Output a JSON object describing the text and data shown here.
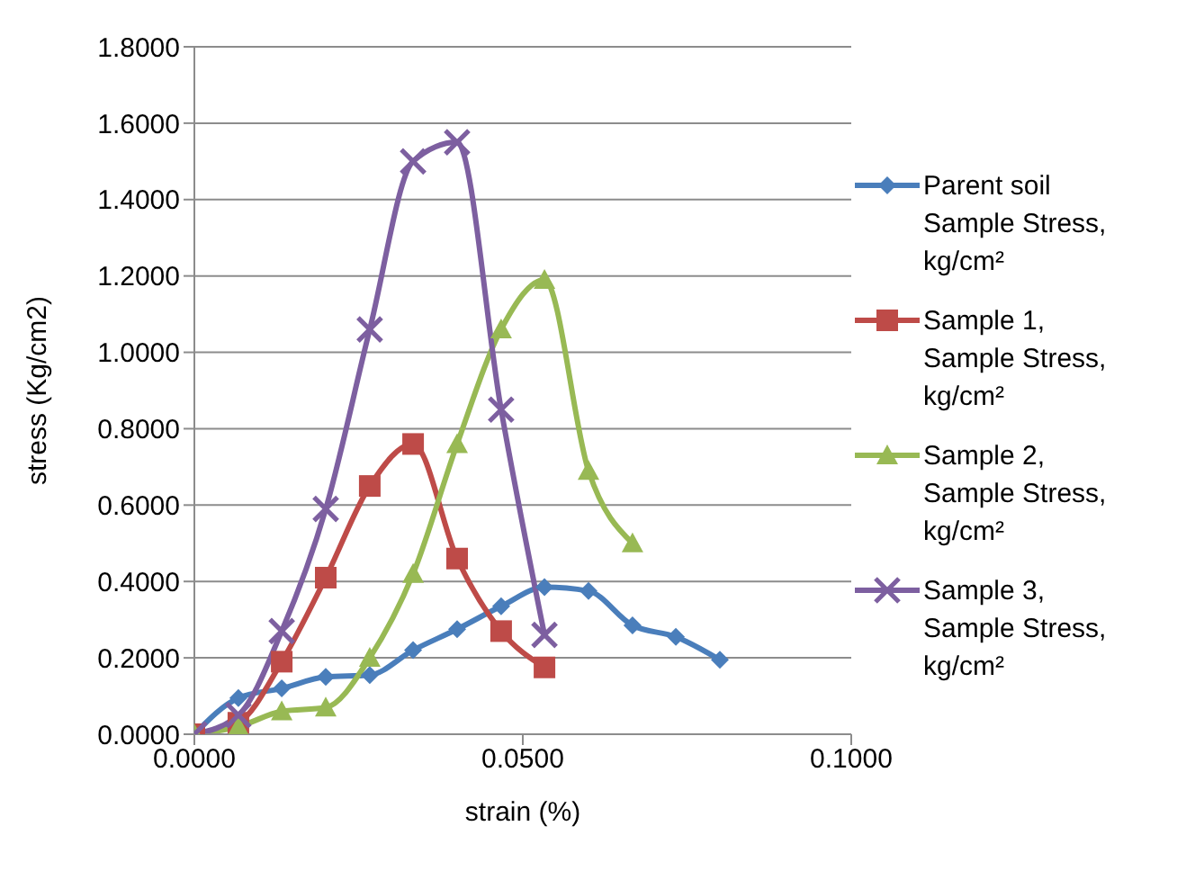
{
  "chart_data": {
    "type": "line",
    "xlabel": "strain (%)",
    "ylabel": "stress (Kg/cm2)",
    "xlim": [
      0,
      0.1
    ],
    "xticks": [
      {
        "value": 0,
        "label": "0.0000"
      },
      {
        "value": 0.05,
        "label": "0.0500"
      },
      {
        "value": 0.1,
        "label": "0.1000"
      }
    ],
    "ylim": [
      0,
      1.8
    ],
    "yticks": [
      {
        "value": 0,
        "label": "0.0000"
      },
      {
        "value": 0.2,
        "label": "0.2000"
      },
      {
        "value": 0.4,
        "label": "0.4000"
      },
      {
        "value": 0.6,
        "label": "0.6000"
      },
      {
        "value": 0.8,
        "label": "0.8000"
      },
      {
        "value": 1,
        "label": "1.0000"
      },
      {
        "value": 1.2,
        "label": "1.2000"
      },
      {
        "value": 1.4,
        "label": "1.4000"
      },
      {
        "value": 1.6,
        "label": "1.6000"
      },
      {
        "value": 1.8,
        "label": "1.8000"
      }
    ],
    "grid": "y",
    "legend": "right",
    "line_style": "solid",
    "series": [
      {
        "name": "Parent soil Sample Stress, kg/cm²",
        "color": "#4a7ebb",
        "marker": "diamond",
        "x": [
          0,
          0.0067,
          0.0133,
          0.02,
          0.0267,
          0.0333,
          0.04,
          0.0467,
          0.0533,
          0.06,
          0.0667,
          0.0733,
          0.08
        ],
        "values": [
          0,
          0.095,
          0.12,
          0.15,
          0.155,
          0.22,
          0.275,
          0.335,
          0.385,
          0.375,
          0.285,
          0.255,
          0.195
        ]
      },
      {
        "name": "Sample 1, Sample Stress, kg/cm²",
        "color": "#be4b48",
        "marker": "square",
        "x": [
          0,
          0.0067,
          0.0133,
          0.02,
          0.0267,
          0.0333,
          0.04,
          0.0467,
          0.0533
        ],
        "values": [
          0,
          0.03,
          0.19,
          0.41,
          0.65,
          0.76,
          0.46,
          0.27,
          0.175
        ]
      },
      {
        "name": "Sample 2, Sample Stress, kg/cm²",
        "color": "#98b954",
        "marker": "triangle",
        "x": [
          0,
          0.0067,
          0.0133,
          0.02,
          0.0267,
          0.0333,
          0.04,
          0.0467,
          0.0533,
          0.06,
          0.0667
        ],
        "values": [
          0,
          0.02,
          0.06,
          0.07,
          0.2,
          0.42,
          0.76,
          1.06,
          1.19,
          0.69,
          0.5
        ]
      },
      {
        "name": "Sample 3, Sample Stress, kg/cm²",
        "color": "#7d5fa0",
        "marker": "cross",
        "x": [
          0,
          0.0067,
          0.0133,
          0.02,
          0.0267,
          0.0333,
          0.04,
          0.0467,
          0.0533
        ],
        "values": [
          0,
          0.05,
          0.27,
          0.59,
          1.06,
          1.5,
          1.55,
          0.85,
          0.26
        ]
      }
    ]
  }
}
